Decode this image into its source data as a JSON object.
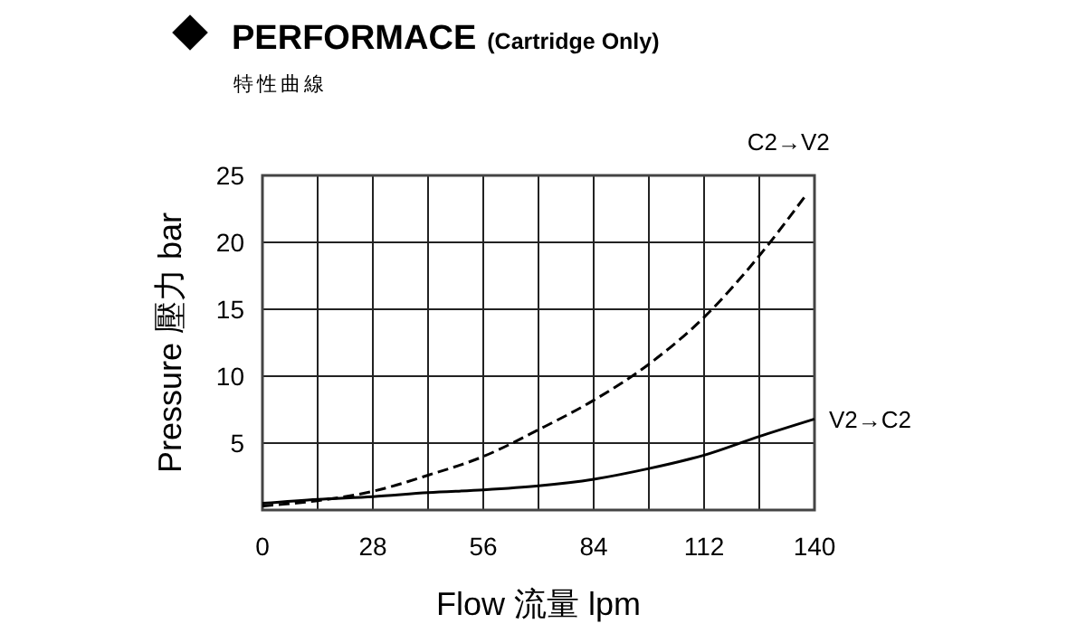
{
  "chart_data": {
    "type": "line",
    "title": "PERFORMACE",
    "subtitle": "(Cartridge Only)",
    "annotations": [
      "特性曲線"
    ],
    "xlabel": "Flow 流量 lpm",
    "ylabel": "Pressure 壓力 bar",
    "x": [
      0,
      14,
      28,
      42,
      56,
      70,
      84,
      98,
      112,
      126,
      140
    ],
    "series": [
      {
        "name": "C2→V2",
        "color": "#000000",
        "line_style": "dashed",
        "x": [
          0,
          14,
          28,
          42,
          56,
          70,
          84,
          98,
          112,
          126,
          138
        ],
        "values": [
          0.3,
          0.7,
          1.4,
          2.6,
          4.0,
          6.0,
          8.2,
          10.9,
          14.4,
          19.0,
          23.6
        ]
      },
      {
        "name": "V2→C2",
        "color": "#000000",
        "line_style": "solid",
        "values": [
          0.5,
          0.8,
          1.0,
          1.3,
          1.5,
          1.8,
          2.3,
          3.1,
          4.1,
          5.5,
          6.8
        ]
      }
    ],
    "xlim": [
      0,
      140
    ],
    "xticks": [
      0,
      {
        "value": 14,
        "label": null
      },
      28,
      {
        "value": 42,
        "label": null
      },
      56,
      {
        "value": 70,
        "label": null
      },
      84,
      {
        "value": 98,
        "label": null
      },
      112,
      {
        "value": 126,
        "label": null
      },
      140
    ],
    "ylim": [
      0,
      25
    ],
    "yticks": [
      {
        "value": 0,
        "label": null
      },
      5,
      10,
      15,
      20,
      25
    ],
    "grid": true,
    "marker": "none"
  }
}
